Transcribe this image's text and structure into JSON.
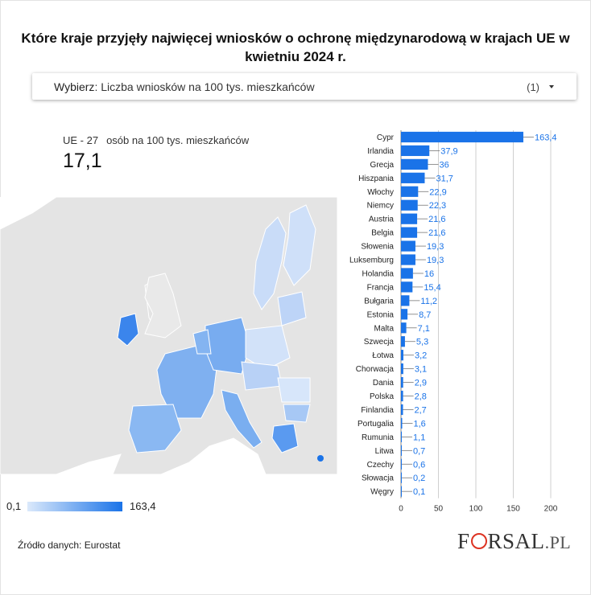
{
  "title": "Które kraje przyjęły najwięcej wniosków o ochronę międzynarodową w krajach UE w kwietniu 2024 r.",
  "selector": {
    "label": "Wybierz",
    "value": "Liczba wniosków na 100 tys. mieszkańców",
    "count": "(1)"
  },
  "kpi": {
    "region": "UE - 27",
    "unit": "osób na 100 tys. mieszkańców",
    "value": "17,1"
  },
  "legend": {
    "min": "0,1",
    "max": "163,4",
    "color_min": "#dbe9fb",
    "color_max": "#1a73e8"
  },
  "source": "Źródło danych: Eurostat",
  "logo": {
    "text_a": "F",
    "text_b": "RSAL",
    "text_c": ".PL"
  },
  "colors": {
    "bar": "#1a73e8",
    "grid": "#cfcfcf",
    "label_text": "#1a73e8",
    "map_bg": "#e6e6e6"
  },
  "chart_data": {
    "type": "bar",
    "orientation": "horizontal",
    "categories": [
      "Cypr",
      "Irlandia",
      "Grecja",
      "Hiszpania",
      "Włochy",
      "Niemcy",
      "Austria",
      "Belgia",
      "Słowenia",
      "Luksemburg",
      "Holandia",
      "Francja",
      "Bułgaria",
      "Estonia",
      "Malta",
      "Szwecja",
      "Łotwa",
      "Chorwacja",
      "Dania",
      "Polska",
      "Finlandia",
      "Portugalia",
      "Rumunia",
      "Litwa",
      "Czechy",
      "Słowacja",
      "Węgry"
    ],
    "values": [
      163.4,
      37.9,
      36,
      31.7,
      22.9,
      22.3,
      21.6,
      21.6,
      19.3,
      19.3,
      16,
      15.4,
      11.2,
      8.7,
      7.1,
      5.3,
      3.2,
      3.1,
      2.9,
      2.8,
      2.7,
      1.6,
      1.1,
      0.7,
      0.6,
      0.2,
      0.1
    ],
    "value_labels": [
      "163,4",
      "37,9",
      "36",
      "31,7",
      "22,9",
      "22,3",
      "21,6",
      "21,6",
      "19,3",
      "19,3",
      "16",
      "15,4",
      "11,2",
      "8,7",
      "7,1",
      "5,3",
      "3,2",
      "3,1",
      "2,9",
      "2,8",
      "2,7",
      "1,6",
      "1,1",
      "0,7",
      "0,6",
      "0,2",
      "0,1"
    ],
    "xlim": [
      0,
      200
    ],
    "xticks": [
      0,
      50,
      100,
      150,
      200
    ],
    "grid": true
  }
}
